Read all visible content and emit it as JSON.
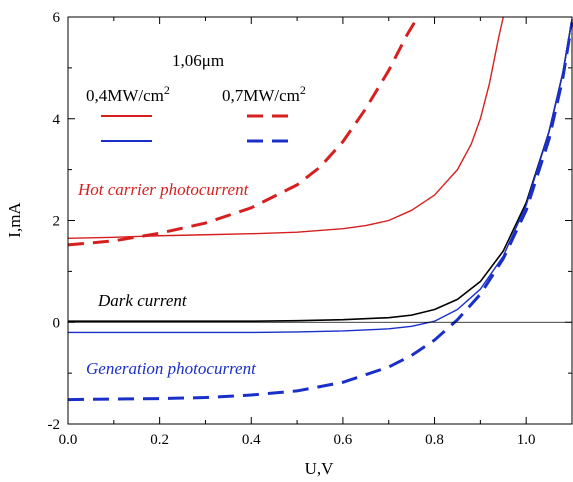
{
  "chart_data": {
    "type": "line",
    "xlabel": "U,V",
    "ylabel": "I,mA",
    "xlim": [
      0.0,
      1.1
    ],
    "ylim": [
      -2,
      6
    ],
    "x_ticks": [
      "0.0",
      "0.2",
      "0.4",
      "0.6",
      "0.8",
      "1.0"
    ],
    "y_ticks": [
      "-2",
      "0",
      "2",
      "4",
      "6"
    ],
    "grid": false,
    "legend": {
      "title": "1,06μm",
      "col1": "0,4MW/cm",
      "col1_sup": "2",
      "col2": "0,7MW/cm",
      "col2_sup": "2",
      "placement": "top-left"
    },
    "colors": {
      "red": "#d62020",
      "blue": "#1a2fc8",
      "black": "#000000"
    },
    "annotations": {
      "hot": "Hot carrier photocurrent",
      "dark": "Dark current",
      "gen": "Generation photocurrent"
    },
    "series": [
      {
        "color": "red",
        "dash": false,
        "x": [
          0.0,
          0.1,
          0.2,
          0.3,
          0.4,
          0.5,
          0.6,
          0.65,
          0.7,
          0.75,
          0.8,
          0.85,
          0.88,
          0.9,
          0.92,
          0.94,
          0.95
        ],
        "y": [
          1.65,
          1.67,
          1.7,
          1.72,
          1.74,
          1.77,
          1.84,
          1.9,
          2.0,
          2.2,
          2.5,
          3.0,
          3.5,
          4.0,
          4.7,
          5.6,
          6.0
        ]
      },
      {
        "color": "red",
        "dash": true,
        "x": [
          0.0,
          0.1,
          0.2,
          0.3,
          0.4,
          0.5,
          0.55,
          0.6,
          0.65,
          0.7,
          0.72,
          0.74,
          0.76
        ],
        "y": [
          1.52,
          1.6,
          1.75,
          1.95,
          2.25,
          2.7,
          3.05,
          3.55,
          4.2,
          4.95,
          5.3,
          5.65,
          5.95
        ]
      },
      {
        "color": "black",
        "dash": false,
        "x": [
          0.0,
          0.4,
          0.5,
          0.6,
          0.7,
          0.75,
          0.8,
          0.85,
          0.9,
          0.95,
          1.0,
          1.05,
          1.08,
          1.1
        ],
        "y": [
          0.02,
          0.02,
          0.03,
          0.05,
          0.09,
          0.14,
          0.25,
          0.45,
          0.8,
          1.4,
          2.35,
          3.75,
          4.9,
          5.95
        ]
      },
      {
        "color": "blue",
        "dash": false,
        "x": [
          0.0,
          0.4,
          0.5,
          0.6,
          0.7,
          0.75,
          0.8,
          0.85,
          0.9,
          0.95,
          1.0,
          1.05,
          1.08,
          1.1
        ],
        "y": [
          -0.2,
          -0.2,
          -0.19,
          -0.17,
          -0.13,
          -0.08,
          0.02,
          0.25,
          0.65,
          1.3,
          2.3,
          3.75,
          4.9,
          5.95
        ]
      },
      {
        "color": "blue",
        "dash": true,
        "x": [
          0.0,
          0.2,
          0.3,
          0.4,
          0.5,
          0.6,
          0.7,
          0.75,
          0.8,
          0.85,
          0.9,
          0.95,
          1.0,
          1.05,
          1.08,
          1.1
        ],
        "y": [
          -1.52,
          -1.5,
          -1.48,
          -1.43,
          -1.35,
          -1.18,
          -0.88,
          -0.65,
          -0.35,
          0.05,
          0.55,
          1.25,
          2.2,
          3.6,
          4.8,
          5.9
        ]
      }
    ]
  }
}
